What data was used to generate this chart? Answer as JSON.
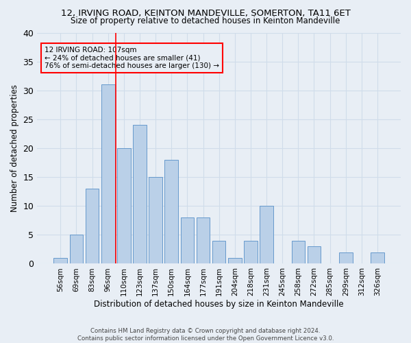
{
  "title": "12, IRVING ROAD, KEINTON MANDEVILLE, SOMERTON, TA11 6ET",
  "subtitle": "Size of property relative to detached houses in Keinton Mandeville",
  "xlabel": "Distribution of detached houses by size in Keinton Mandeville",
  "ylabel": "Number of detached properties",
  "bar_labels": [
    "56sqm",
    "69sqm",
    "83sqm",
    "96sqm",
    "110sqm",
    "123sqm",
    "137sqm",
    "150sqm",
    "164sqm",
    "177sqm",
    "191sqm",
    "204sqm",
    "218sqm",
    "231sqm",
    "245sqm",
    "258sqm",
    "272sqm",
    "285sqm",
    "299sqm",
    "312sqm",
    "326sqm"
  ],
  "bar_values": [
    1,
    5,
    13,
    31,
    20,
    24,
    15,
    18,
    8,
    8,
    4,
    1,
    4,
    10,
    0,
    4,
    3,
    0,
    2,
    0,
    2
  ],
  "bar_color": "#bad0e8",
  "bar_edge_color": "#6699cc",
  "grid_color": "#d0dcea",
  "background_color": "#e8eef5",
  "vline_color": "red",
  "annotation_lines": [
    "12 IRVING ROAD: 107sqm",
    "← 24% of detached houses are smaller (41)",
    "76% of semi-detached houses are larger (130) →"
  ],
  "annotation_box_color": "red",
  "ylim": [
    0,
    40
  ],
  "yticks": [
    0,
    5,
    10,
    15,
    20,
    25,
    30,
    35,
    40
  ],
  "footer_line1": "Contains HM Land Registry data © Crown copyright and database right 2024.",
  "footer_line2": "Contains public sector information licensed under the Open Government Licence v3.0."
}
